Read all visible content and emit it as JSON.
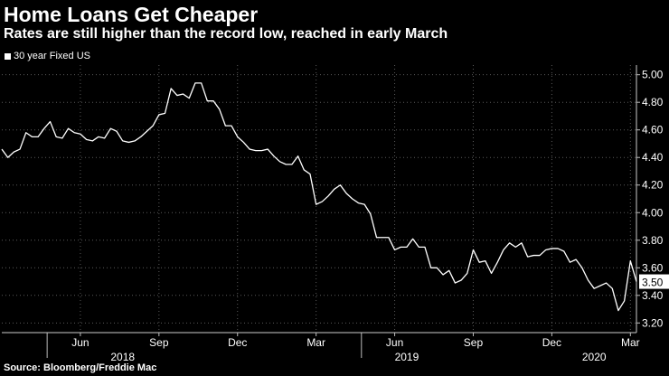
{
  "chart_data": {
    "type": "line",
    "title": "Home Loans Get Cheaper",
    "subtitle": "Rates are still higher than the record low, reached in early March",
    "source": "Source: Bloomberg/Freddie Mac",
    "series": [
      {
        "name": "30 year Fixed US",
        "color": "#ffffff",
        "last_value_label": "3.50",
        "values": [
          4.46,
          4.4,
          4.44,
          4.46,
          4.58,
          4.55,
          4.55,
          4.61,
          4.66,
          4.55,
          4.54,
          4.61,
          4.58,
          4.57,
          4.53,
          4.52,
          4.55,
          4.54,
          4.61,
          4.59,
          4.52,
          4.51,
          4.52,
          4.55,
          4.59,
          4.63,
          4.71,
          4.72,
          4.9,
          4.85,
          4.86,
          4.83,
          4.94,
          4.94,
          4.81,
          4.81,
          4.75,
          4.63,
          4.63,
          4.55,
          4.51,
          4.46,
          4.45,
          4.45,
          4.46,
          4.41,
          4.37,
          4.35,
          4.35,
          4.41,
          4.31,
          4.28,
          4.06,
          4.08,
          4.12,
          4.17,
          4.2,
          4.14,
          4.1,
          4.07,
          4.06,
          3.99,
          3.82,
          3.82,
          3.82,
          3.73,
          3.75,
          3.75,
          3.81,
          3.75,
          3.75,
          3.6,
          3.6,
          3.55,
          3.58,
          3.49,
          3.51,
          3.56,
          3.73,
          3.64,
          3.65,
          3.56,
          3.64,
          3.73,
          3.78,
          3.75,
          3.78,
          3.68,
          3.69,
          3.69,
          3.73,
          3.74,
          3.74,
          3.72,
          3.64,
          3.66,
          3.6,
          3.51,
          3.45,
          3.47,
          3.49,
          3.45,
          3.29,
          3.36,
          3.65,
          3.5
        ]
      }
    ],
    "y_axis": {
      "range": [
        3.13,
        5.07
      ],
      "side": "right",
      "ticks": [
        "3.20",
        "3.40",
        "3.60",
        "3.80",
        "4.00",
        "4.20",
        "4.40",
        "4.60",
        "4.80",
        "5.00"
      ]
    },
    "x_axis": {
      "month_labels": [
        {
          "label": "Jun",
          "week": 13
        },
        {
          "label": "Sep",
          "week": 26
        },
        {
          "label": "Dec",
          "week": 39
        },
        {
          "label": "Mar",
          "week": 52
        },
        {
          "label": "Jun",
          "week": 65
        },
        {
          "label": "Sep",
          "week": 78
        },
        {
          "label": "Dec",
          "week": 91
        },
        {
          "label": "Mar",
          "week": 104
        }
      ],
      "year_labels": [
        {
          "label": "2018",
          "week": 20
        },
        {
          "label": "2019",
          "week": 67
        },
        {
          "label": "2020",
          "week": 98
        }
      ]
    },
    "grid": "dotted",
    "legend_position": "top-left"
  }
}
